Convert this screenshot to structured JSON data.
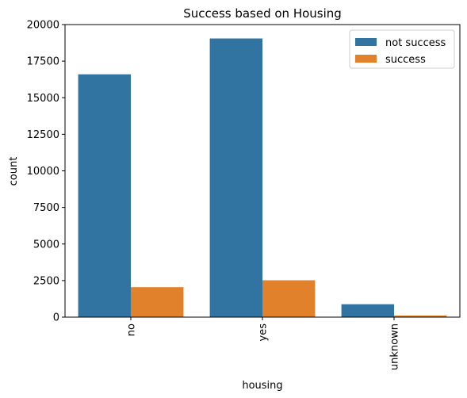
{
  "chart_data": {
    "type": "bar",
    "title": "Success based on Housing",
    "xlabel": "housing",
    "ylabel": "count",
    "categories": [
      "no",
      "yes",
      "unknown"
    ],
    "series": [
      {
        "name": "not success",
        "color": "#3274a1",
        "values": [
          16600,
          19050,
          880
        ]
      },
      {
        "name": "success",
        "color": "#e1812c",
        "values": [
          2050,
          2520,
          110
        ]
      }
    ],
    "ylim": [
      0,
      20000
    ],
    "yticks": [
      0,
      2500,
      5000,
      7500,
      10000,
      12500,
      15000,
      17500,
      20000
    ],
    "legend": "top-right",
    "grid": false
  }
}
